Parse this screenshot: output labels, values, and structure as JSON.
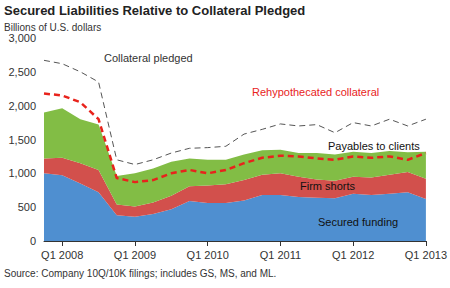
{
  "chart_data": {
    "type": "area",
    "title": "Secured Liabilities Relative to Collateral Pledged",
    "subtitle": "Billions of U.S. dollars",
    "annotations": [
      "Source: Company 10Q/10K filings; includes GS, MS, and ML."
    ],
    "categories": [
      null,
      "Q1 2008",
      null,
      null,
      null,
      "Q1 2009",
      null,
      null,
      null,
      "Q1 2010",
      null,
      null,
      null,
      "Q1 2011",
      null,
      null,
      null,
      "Q1 2012",
      null,
      null,
      null,
      "Q1 2013"
    ],
    "stacked": true,
    "grid": false,
    "ylim": [
      0,
      3000
    ],
    "yticks": [
      0,
      500,
      {
        "value": 1000,
        "label": "1,000"
      },
      {
        "value": 1500,
        "label": "1,500"
      },
      {
        "value": 2000,
        "label": "2,000"
      },
      {
        "value": 2500,
        "label": "2,500"
      },
      {
        "value": 3000,
        "label": "3,000"
      }
    ],
    "series": [
      {
        "name": "Secured funding",
        "type": "area",
        "color": "#4f8fd0",
        "values": [
          1000,
          970,
          850,
          720,
          380,
          360,
          400,
          470,
          590,
          560,
          560,
          600,
          680,
          680,
          650,
          640,
          630,
          700,
          680,
          700,
          720,
          620
        ]
      },
      {
        "name": "Firm shorts",
        "type": "area",
        "color": "#d2504c",
        "values": [
          220,
          260,
          300,
          330,
          160,
          150,
          170,
          200,
          220,
          260,
          280,
          300,
          300,
          320,
          300,
          270,
          260,
          250,
          260,
          280,
          300,
          300
        ]
      },
      {
        "name": "Payables to clients",
        "type": "area",
        "color": "#82bd45",
        "values": [
          680,
          730,
          650,
          670,
          420,
          490,
          500,
          500,
          410,
          380,
          360,
          380,
          360,
          350,
          350,
          390,
          390,
          370,
          360,
          350,
          290,
          400
        ]
      },
      {
        "name": "Rehypothecated collateral",
        "type": "line",
        "line_style": "dashed",
        "color": "#e8231c",
        "values": [
          2180,
          2150,
          2050,
          1800,
          930,
          870,
          900,
          1000,
          1050,
          1000,
          1050,
          1150,
          1230,
          1260,
          1250,
          1220,
          1200,
          1250,
          1230,
          1250,
          1200,
          1300
        ]
      },
      {
        "name": "Collateral pledged",
        "type": "line",
        "line_style": "dashed",
        "color": "#555555",
        "values": [
          2670,
          2620,
          2500,
          2350,
          1200,
          1130,
          1200,
          1300,
          1370,
          1380,
          1400,
          1580,
          1650,
          1730,
          1700,
          1720,
          1600,
          1750,
          1700,
          1800,
          1700,
          1800
        ]
      }
    ]
  }
}
